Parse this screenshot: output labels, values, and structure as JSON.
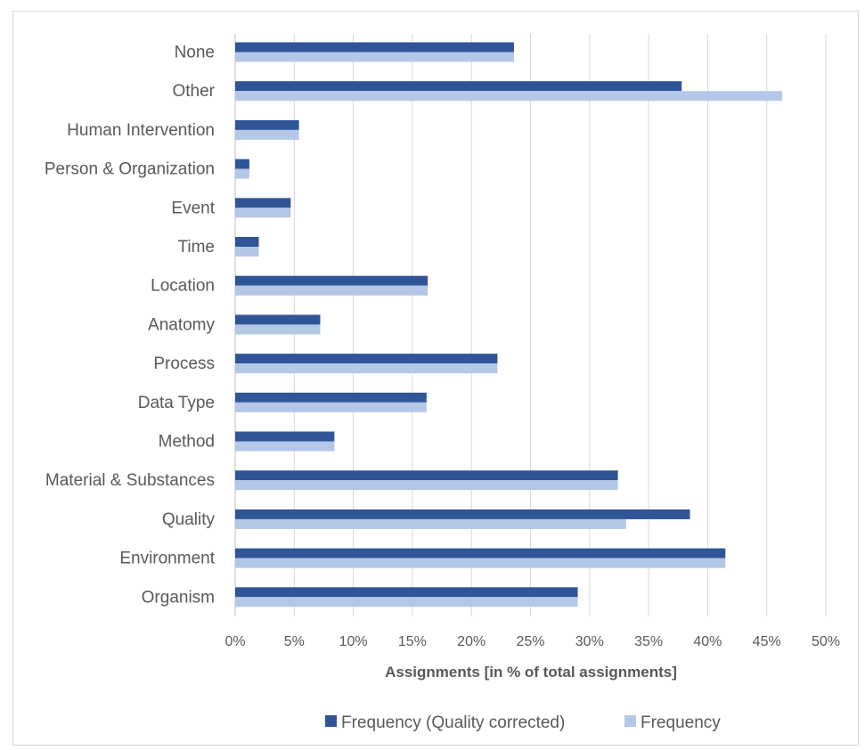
{
  "chart_data": {
    "type": "bar",
    "orientation": "horizontal",
    "categories": [
      "None",
      "Other",
      "Human Intervention",
      "Person & Organization",
      "Event",
      "Time",
      "Location",
      "Anatomy",
      "Process",
      "Data Type",
      "Method",
      "Material & Substances",
      "Quality",
      "Environment",
      "Organism"
    ],
    "series": [
      {
        "name": "Frequency (Quality corrected)",
        "color": "#2f5597",
        "values": [
          23.6,
          37.8,
          5.4,
          1.2,
          4.7,
          2.0,
          16.3,
          7.2,
          22.2,
          16.2,
          8.4,
          32.4,
          38.5,
          41.5,
          29.0
        ]
      },
      {
        "name": "Frequency",
        "color": "#b4c7e7",
        "values": [
          23.6,
          46.3,
          5.4,
          1.2,
          4.7,
          2.0,
          16.3,
          7.2,
          22.2,
          16.2,
          8.4,
          32.4,
          33.1,
          41.5,
          29.0
        ]
      }
    ],
    "xlabel": "Assignments [in % of total assignments]",
    "xlim": [
      0,
      50
    ],
    "x_ticks": [
      "0%",
      "5%",
      "10%",
      "15%",
      "20%",
      "25%",
      "30%",
      "35%",
      "40%",
      "45%",
      "50%"
    ],
    "grid": "vertical",
    "gridline_color": "#d9d9d9",
    "legend_position": "bottom"
  }
}
